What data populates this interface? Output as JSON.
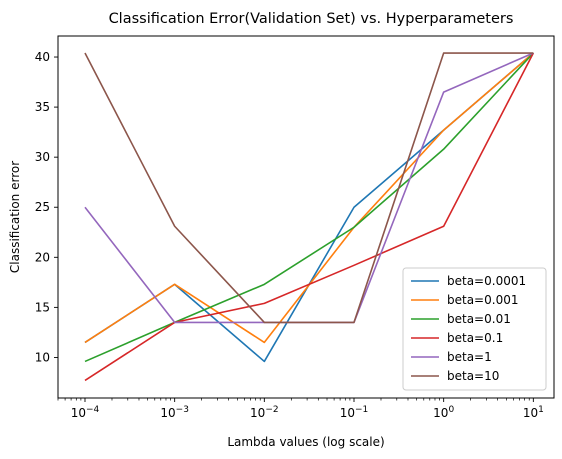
{
  "chart_data": {
    "type": "line",
    "title": "Classification Error(Validation Set) vs. Hyperparameters",
    "xlabel": "Lambda values (log scale)",
    "ylabel": "Classification error",
    "xscale": "log",
    "x": [
      0.0001,
      0.001,
      0.01,
      0.1,
      1,
      10
    ],
    "xlim": [
      5e-05,
      17
    ],
    "ylim": [
      5.95,
      42.1
    ],
    "xticks": [
      {
        "value": 0.0001,
        "base": "10",
        "exp": "−4"
      },
      {
        "value": 0.001,
        "base": "10",
        "exp": "−3"
      },
      {
        "value": 0.01,
        "base": "10",
        "exp": "−2"
      },
      {
        "value": 0.1,
        "base": "10",
        "exp": "−1"
      },
      {
        "value": 1,
        "base": "10",
        "exp": "0"
      },
      {
        "value": 10,
        "base": "10",
        "exp": "1"
      }
    ],
    "yticks": [
      10,
      15,
      20,
      25,
      30,
      35,
      40
    ],
    "grid": false,
    "legend_position": "lower right",
    "series": [
      {
        "name": "beta=0.0001",
        "color": "#1f77b4",
        "values": [
          11.5,
          17.3,
          9.6,
          25.0,
          32.7,
          40.4
        ]
      },
      {
        "name": "beta=0.001",
        "color": "#ff7f0e",
        "values": [
          11.5,
          17.3,
          11.5,
          23.0,
          32.7,
          40.4
        ]
      },
      {
        "name": "beta=0.01",
        "color": "#2ca02c",
        "values": [
          9.6,
          13.5,
          17.3,
          23.0,
          30.8,
          40.4
        ]
      },
      {
        "name": "beta=0.1",
        "color": "#d62728",
        "values": [
          7.7,
          13.5,
          15.4,
          19.2,
          23.1,
          40.4
        ]
      },
      {
        "name": "beta=1",
        "color": "#9467bd",
        "values": [
          25.0,
          13.5,
          13.5,
          13.5,
          36.5,
          40.4
        ]
      },
      {
        "name": "beta=10",
        "color": "#8c564b",
        "values": [
          40.4,
          23.1,
          13.5,
          13.5,
          40.4,
          40.4
        ]
      }
    ]
  }
}
